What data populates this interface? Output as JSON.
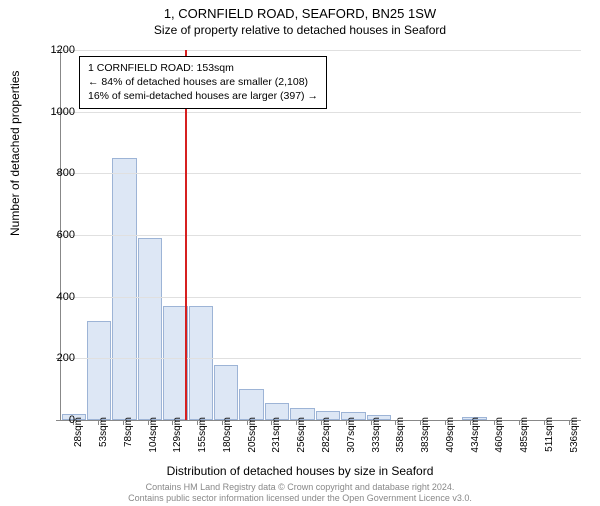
{
  "title": "1, CORNFIELD ROAD, SEAFORD, BN25 1SW",
  "subtitle": "Size of property relative to detached houses in Seaford",
  "ylabel": "Number of detached properties",
  "xlabel": "Distribution of detached houses by size in Seaford",
  "footer1": "Contains HM Land Registry data © Crown copyright and database right 2024.",
  "footer2": "Contains public sector information licensed under the Open Government Licence v3.0.",
  "chart": {
    "type": "histogram",
    "ylim": [
      0,
      1200
    ],
    "ytick_step": 200,
    "bar_fill": "#dde7f5",
    "bar_border": "#9db4d6",
    "grid_color": "#e0e0e0",
    "axis_color": "#888888",
    "marker_color": "#d62020",
    "marker_at_index": 5,
    "categories": [
      "28sqm",
      "53sqm",
      "78sqm",
      "104sqm",
      "129sqm",
      "155sqm",
      "180sqm",
      "205sqm",
      "231sqm",
      "256sqm",
      "282sqm",
      "307sqm",
      "333sqm",
      "358sqm",
      "383sqm",
      "409sqm",
      "434sqm",
      "460sqm",
      "485sqm",
      "511sqm",
      "536sqm"
    ],
    "values": [
      20,
      320,
      850,
      590,
      370,
      370,
      180,
      100,
      55,
      40,
      30,
      25,
      15,
      0,
      0,
      0,
      10,
      0,
      0,
      0,
      0
    ]
  },
  "infobox": {
    "line1": "1 CORNFIELD ROAD: 153sqm",
    "line2": "← 84% of detached houses are smaller (2,108)",
    "line3": "16% of semi-detached houses are larger (397) →"
  }
}
